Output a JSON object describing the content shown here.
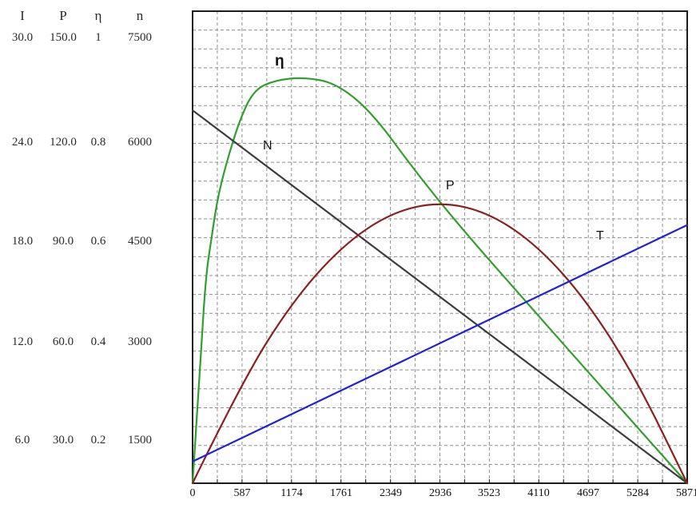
{
  "left_table": {
    "columns": [
      "I",
      "P",
      "η",
      "n"
    ],
    "rows": [
      [
        "30.0",
        "150.0",
        "1",
        "7500"
      ],
      [
        "24.0",
        "120.0",
        "0.8",
        "6000"
      ],
      [
        "18.0",
        "90.0",
        "0.6",
        "4500"
      ],
      [
        "12.0",
        "60.0",
        "0.4",
        "3000"
      ],
      [
        "6.0",
        "30.0",
        "0.2",
        "1500"
      ]
    ]
  },
  "chart_data": {
    "type": "line",
    "title": "",
    "xlabel": "",
    "ylabel": "",
    "x_range": [
      0,
      5871
    ],
    "x_ticks": [
      "0",
      "587",
      "1174",
      "1761",
      "2349",
      "2936",
      "3523",
      "4110",
      "4697",
      "5284",
      "5871"
    ],
    "grid": {
      "on": true,
      "columns": 20,
      "rows": 25,
      "style": "dashed",
      "color": "#8f8f8f"
    },
    "border_color": "#1c1c1c",
    "left_scales": {
      "I": [
        30.0,
        24.0,
        18.0,
        12.0,
        6.0
      ],
      "P": [
        150.0,
        120.0,
        90.0,
        60.0,
        30.0
      ],
      "eta": [
        1,
        0.8,
        0.6,
        0.4,
        0.2
      ],
      "n": [
        7500,
        6000,
        4500,
        3000,
        1500
      ]
    },
    "y_unit": "fraction_of_plot_height (0 = bottom axis, 1 = top axis)",
    "series": [
      {
        "id": "eta",
        "name": "η",
        "color": "#2fa02c",
        "shape": "curve",
        "points": [
          [
            0,
            0.0
          ],
          [
            85,
            0.228
          ],
          [
            152,
            0.431
          ],
          [
            228,
            0.524
          ],
          [
            294,
            0.601
          ],
          [
            398,
            0.677
          ],
          [
            560,
            0.77
          ],
          [
            730,
            0.834
          ],
          [
            986,
            0.854
          ],
          [
            1318,
            0.86
          ],
          [
            1698,
            0.848
          ],
          [
            2124,
            0.787
          ],
          [
            2646,
            0.66
          ],
          [
            3168,
            0.545
          ],
          [
            3974,
            0.381
          ],
          [
            4922,
            0.19
          ],
          [
            5871,
            0.0
          ]
        ]
      },
      {
        "id": "N",
        "name": "N",
        "color": "#3c3c3c",
        "shape": "line",
        "points": [
          [
            0,
            0.79
          ],
          [
            5871,
            0.0
          ]
        ]
      },
      {
        "id": "P",
        "name": "P",
        "color": "#8e1f1f",
        "shape": "curve",
        "points": [
          [
            0,
            0.0
          ],
          [
            587,
            0.215
          ],
          [
            1174,
            0.382
          ],
          [
            1761,
            0.501
          ],
          [
            2349,
            0.573
          ],
          [
            2936,
            0.597
          ],
          [
            3523,
            0.573
          ],
          [
            4110,
            0.501
          ],
          [
            4697,
            0.382
          ],
          [
            5284,
            0.215
          ],
          [
            5871,
            0.0
          ]
        ]
      },
      {
        "id": "T",
        "name": "T",
        "color": "#2020dd",
        "shape": "line",
        "points": [
          [
            0,
            0.046
          ],
          [
            5871,
            0.547
          ]
        ]
      }
    ]
  }
}
